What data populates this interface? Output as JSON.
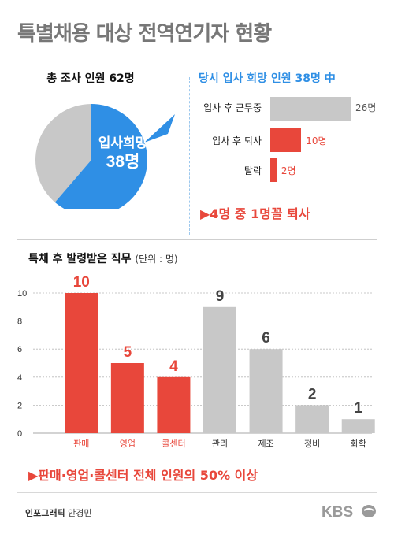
{
  "title": "특별채용 대상 전역연기자 현황",
  "pie": {
    "caption": "총 조사 인원 62명",
    "label": "입사희망",
    "value_text": "38명",
    "total": 62,
    "highlight": 38,
    "highlight_color": "#2f8fe5",
    "rest_color": "#c8c8c8"
  },
  "hope_breakdown": {
    "title": "당시 입사 희망 인원 38명 中",
    "note": "▶4명 중 1명꼴 퇴사",
    "items": [
      {
        "label": "입사 후 근무중",
        "value": 26,
        "value_text": "26명",
        "color": "#c8c8c8"
      },
      {
        "label": "입사 후 퇴사",
        "value": 10,
        "value_text": "10명",
        "color": "#e8473b"
      },
      {
        "label": "탈락",
        "value": 2,
        "value_text": "2명",
        "color": "#e8473b"
      }
    ]
  },
  "job_chart": {
    "title": "특채 후 발령받은 직무",
    "unit": "(단위 : 명)",
    "summary": "▶판매·영업·콜센터 전체 인원의 50% 이상"
  },
  "chart_data": {
    "type": "bar",
    "categories": [
      "판매",
      "영업",
      "콜센터",
      "관리",
      "제조",
      "정비",
      "화학"
    ],
    "values": [
      10,
      5,
      4,
      9,
      6,
      2,
      1
    ],
    "highlight_color": "#e8473b",
    "base_color": "#c8c8c8",
    "highlighted": [
      true,
      true,
      true,
      false,
      false,
      false,
      false
    ],
    "yticks": [
      0,
      2,
      4,
      6,
      8,
      10
    ],
    "ylim": [
      0,
      10
    ],
    "grid": true
  },
  "footer": {
    "credit_label": "인포그래픽",
    "credit_name": "안경민",
    "logo_text": "KBS"
  }
}
